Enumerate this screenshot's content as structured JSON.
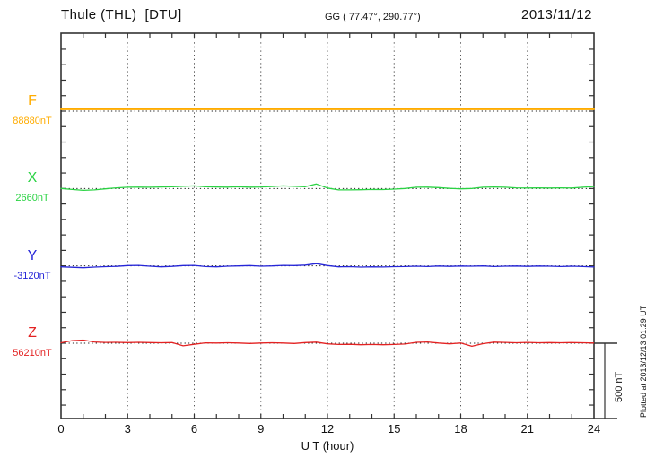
{
  "header": {
    "station_title": "Thule (THL)  [DTU]",
    "gg_coordinates": "GG ( 77.47°, 290.77°)",
    "date": "2013/11/12"
  },
  "right_side": {
    "scale_bar_label": "500 nT",
    "plotted_note": "Plotted at 2013/12/13 01:29 UT"
  },
  "colors": {
    "F": "#FFAC00",
    "X": "#2BD344",
    "Y": "#2626D8",
    "Z": "#E32222",
    "axis": "#333333",
    "grid": "#555555",
    "baseline_dots": "#222222"
  },
  "chart_data": {
    "type": "line",
    "title": "Thule (THL) [DTU] magnetogram",
    "date": "2013/11/12",
    "xlabel": "U T (hour)",
    "x_range_hours": [
      0,
      24
    ],
    "x_ticks": [
      0,
      3,
      6,
      9,
      12,
      15,
      18,
      21,
      24
    ],
    "grid_hours": [
      3,
      6,
      9,
      12,
      15,
      18,
      21
    ],
    "hour_tick_interval": 1,
    "edge_tick_nT": 100,
    "channel_spacing_nT": 500,
    "scale_bar_nT": 500,
    "scale_bar_label": "500 nT",
    "legend_position": "left",
    "grid": true,
    "series": [
      {
        "name": "F",
        "baseline_label": "88880nT",
        "baseline_nT": 88880,
        "color": "#FFAC00",
        "sample_step_hours": 0.5,
        "offsets_nT": [
          12,
          12,
          12,
          12,
          12,
          12,
          12,
          12,
          12,
          12,
          12,
          12,
          12,
          12,
          12,
          12,
          12,
          12,
          12,
          12,
          12,
          12,
          12,
          12,
          12,
          12,
          12,
          12,
          12,
          12,
          12,
          12,
          12,
          12,
          12,
          12,
          12,
          12,
          12,
          12,
          12,
          12,
          12,
          12,
          12,
          12,
          12,
          12,
          12
        ]
      },
      {
        "name": "X",
        "baseline_label": "2660nT",
        "baseline_nT": 2660,
        "color": "#2BD344",
        "sample_step_hours": 0.5,
        "offsets_nT": [
          0,
          -6,
          -12,
          -9,
          -2,
          4,
          8,
          9,
          8,
          10,
          12,
          14,
          17,
          12,
          10,
          9,
          11,
          9,
          10,
          13,
          17,
          14,
          12,
          29,
          3,
          -9,
          -9,
          -8,
          -6,
          -7,
          -4,
          0,
          8,
          9,
          6,
          1,
          -2,
          0,
          8,
          10,
          8,
          4,
          3,
          4,
          3,
          4,
          3,
          8,
          13
        ]
      },
      {
        "name": "Y",
        "baseline_label": "-3120nT",
        "baseline_nT": -3120,
        "color": "#2626D8",
        "sample_step_hours": 0.5,
        "offsets_nT": [
          -6,
          -9,
          -12,
          -8,
          -5,
          -3,
          2,
          3,
          -2,
          -6,
          -3,
          2,
          3,
          -4,
          -6,
          -2,
          0,
          2,
          -2,
          0,
          3,
          2,
          5,
          14,
          2,
          -6,
          -5,
          -8,
          -6,
          -7,
          -5,
          -4,
          -2,
          -4,
          -1,
          -3,
          -1,
          -2,
          0,
          -4,
          -2,
          -1,
          -3,
          -1,
          -2,
          -4,
          -2,
          -4,
          -7
        ]
      },
      {
        "name": "Z",
        "baseline_label": "56210nT",
        "baseline_nT": 56210,
        "color": "#E32222",
        "sample_step_hours": 0.5,
        "offsets_nT": [
          3,
          17,
          20,
          8,
          5,
          6,
          4,
          6,
          4,
          3,
          4,
          -17,
          -7,
          2,
          1,
          3,
          1,
          -2,
          1,
          3,
          1,
          -2,
          4,
          7,
          -4,
          -8,
          -7,
          -10,
          -8,
          -10,
          -8,
          -5,
          6,
          8,
          1,
          -4,
          1,
          -20,
          -3,
          7,
          5,
          3,
          5,
          3,
          4,
          3,
          4,
          3,
          1
        ]
      }
    ]
  }
}
